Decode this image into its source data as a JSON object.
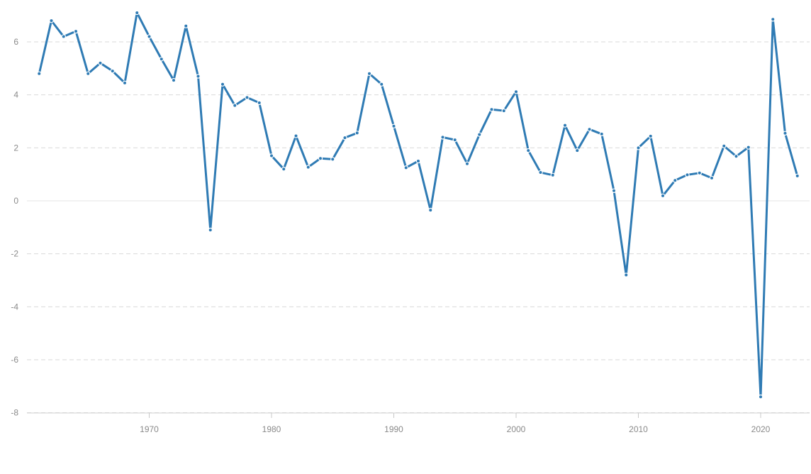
{
  "chart_data": {
    "type": "line",
    "title": "",
    "xlabel": "",
    "ylabel": "",
    "x": [
      1961,
      1962,
      1963,
      1964,
      1965,
      1966,
      1967,
      1968,
      1969,
      1970,
      1971,
      1972,
      1973,
      1974,
      1975,
      1976,
      1977,
      1978,
      1979,
      1980,
      1981,
      1982,
      1983,
      1984,
      1985,
      1986,
      1987,
      1988,
      1989,
      1990,
      1991,
      1992,
      1993,
      1994,
      1995,
      1996,
      1997,
      1998,
      1999,
      2000,
      2001,
      2002,
      2003,
      2004,
      2005,
      2006,
      2007,
      2008,
      2009,
      2010,
      2011,
      2012,
      2013,
      2014,
      2015,
      2016,
      2017,
      2018,
      2019,
      2020,
      2021,
      2022,
      2023
    ],
    "series": [
      {
        "values": [
          4.8,
          6.8,
          6.2,
          6.4,
          4.8,
          5.2,
          4.9,
          4.45,
          7.1,
          6.2,
          5.35,
          4.55,
          6.6,
          4.7,
          -1.1,
          4.4,
          3.6,
          3.9,
          3.7,
          1.7,
          1.2,
          2.45,
          1.27,
          1.6,
          1.57,
          2.38,
          2.56,
          4.8,
          4.4,
          2.82,
          1.25,
          1.5,
          -0.35,
          2.4,
          2.3,
          1.4,
          2.5,
          3.45,
          3.4,
          4.12,
          1.9,
          1.07,
          0.97,
          2.85,
          1.9,
          2.7,
          2.52,
          0.38,
          -2.8,
          2.0,
          2.44,
          0.19,
          0.77,
          0.98,
          1.05,
          0.86,
          2.07,
          1.68,
          2.02,
          -7.4,
          6.85,
          2.55,
          0.94
        ],
        "color": "#2f7bb4"
      }
    ],
    "xlim": [
      1960,
      2024
    ],
    "ylim": [
      -8,
      7
    ],
    "xticks": [
      "1970",
      "1980",
      "1990",
      "2000",
      "2010",
      "2020"
    ],
    "yticks": [
      "-8",
      "-6",
      "-4",
      "-2",
      "0",
      "2",
      "4",
      "6"
    ],
    "grid": true,
    "legend": "none"
  }
}
